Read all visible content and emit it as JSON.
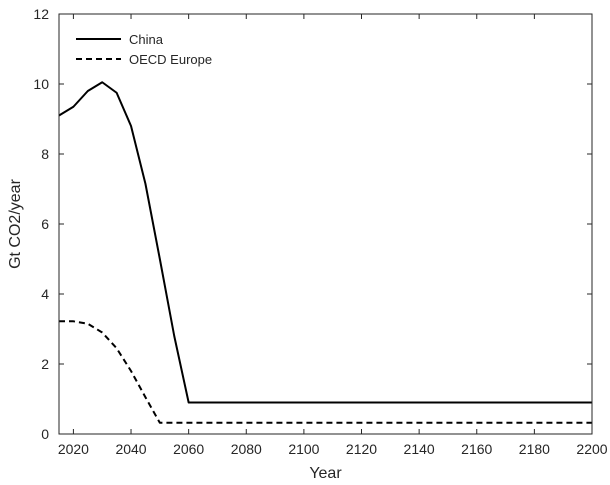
{
  "chart_data": {
    "type": "line",
    "title": "",
    "xlabel": "Year",
    "ylabel": "Gt CO2/year",
    "xlim": [
      2015,
      2200
    ],
    "ylim": [
      0,
      12
    ],
    "xticks": [
      2020,
      2040,
      2060,
      2080,
      2100,
      2120,
      2140,
      2160,
      2180,
      2200
    ],
    "yticks": [
      0,
      2,
      4,
      6,
      8,
      10,
      12
    ],
    "grid": false,
    "legend_position": "top-left",
    "series": [
      {
        "name": "China",
        "style": "solid",
        "color": "#000000",
        "x": [
          2015,
          2020,
          2025,
          2030,
          2035,
          2040,
          2045,
          2050,
          2055,
          2060,
          2200
        ],
        "y": [
          9.1,
          9.35,
          9.8,
          10.05,
          9.75,
          8.8,
          7.15,
          5.0,
          2.8,
          0.9,
          0.9
        ]
      },
      {
        "name": "OECD Europe",
        "style": "dashed",
        "color": "#000000",
        "x": [
          2015,
          2020,
          2025,
          2030,
          2035,
          2040,
          2045,
          2050,
          2200
        ],
        "y": [
          3.22,
          3.22,
          3.15,
          2.9,
          2.45,
          1.8,
          1.05,
          0.32,
          0.32
        ]
      }
    ]
  }
}
